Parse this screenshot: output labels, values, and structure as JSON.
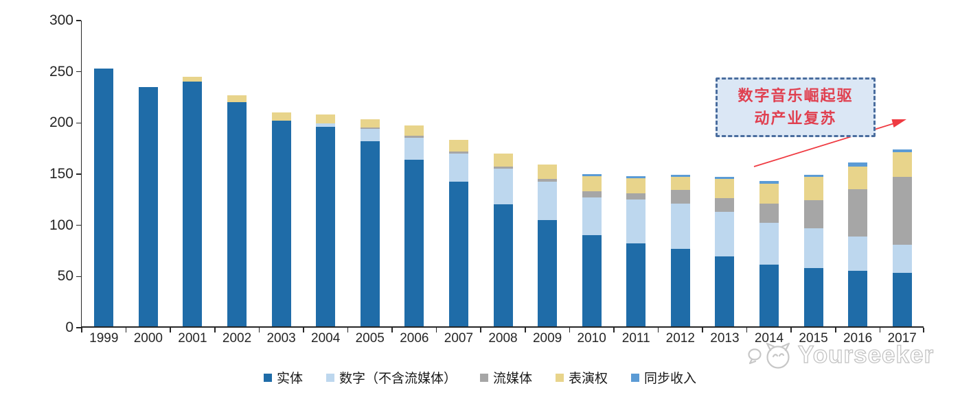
{
  "chart_data": {
    "type": "bar",
    "stacked": true,
    "title": "",
    "xlabel": "",
    "ylabel": "",
    "ylim": [
      0,
      300
    ],
    "yticks": [
      0,
      50,
      100,
      150,
      200,
      250,
      300
    ],
    "grid": false,
    "legend_position": "bottom",
    "categories": [
      "1999",
      "2000",
      "2001",
      "2002",
      "2003",
      "2004",
      "2005",
      "2006",
      "2007",
      "2008",
      "2009",
      "2010",
      "2011",
      "2012",
      "2013",
      "2014",
      "2015",
      "2016",
      "2017"
    ],
    "series": [
      {
        "id": "physical",
        "name": "实体",
        "color": "#1f6ca8",
        "values": [
          252,
          234,
          239,
          219,
          201,
          195,
          181,
          163,
          141,
          119,
          104,
          89,
          81,
          76,
          68,
          60,
          57,
          54,
          52
        ]
      },
      {
        "id": "digital-excl-streaming",
        "name": "数字（不含流媒体）",
        "color": "#bdd7ee",
        "values": [
          0,
          0,
          0,
          0,
          0,
          3,
          12,
          21,
          28,
          35,
          37,
          37,
          43,
          44,
          44,
          41,
          39,
          34,
          28
        ]
      },
      {
        "id": "streaming",
        "name": "流媒体",
        "color": "#a6a6a6",
        "values": [
          0,
          0,
          0,
          0,
          0,
          0,
          1,
          2,
          2,
          2,
          3,
          6,
          6,
          13,
          13,
          19,
          27,
          46,
          66
        ]
      },
      {
        "id": "performance-rights",
        "name": "表演权",
        "color": "#e8d48b",
        "values": [
          0,
          0,
          5,
          7,
          8,
          9,
          8,
          10,
          11,
          13,
          14,
          15,
          15,
          13,
          19,
          19,
          23,
          22,
          24
        ]
      },
      {
        "id": "sync-revenue",
        "name": "同步收入",
        "color": "#5b9bd5",
        "values": [
          0,
          0,
          0,
          0,
          0,
          0,
          0,
          0,
          0,
          0,
          0,
          2,
          2,
          2,
          2,
          3,
          2,
          4,
          3
        ]
      }
    ]
  },
  "annotation": {
    "line1": "数字音乐崛起驱",
    "line2": "动产业复苏",
    "border_color": "#4a6d9e",
    "fill_color": "#dbe7f5",
    "text_color": "#e04050",
    "arrow_color": "#ef3b42"
  },
  "watermark": {
    "text": "Yourseeker"
  }
}
